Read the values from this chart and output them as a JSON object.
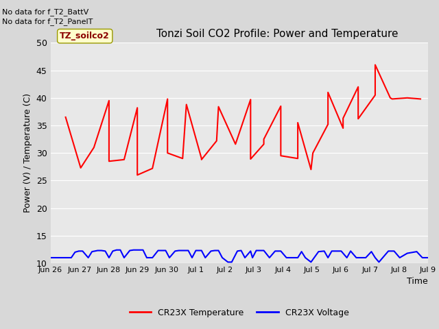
{
  "title": "Tonzi Soil CO2 Profile: Power and Temperature",
  "ylabel": "Power (V) / Temperature (C)",
  "xlabel": "Time",
  "ylim": [
    10,
    50
  ],
  "yticks": [
    10,
    15,
    20,
    25,
    30,
    35,
    40,
    45,
    50
  ],
  "no_data_text_1": "No data for f_T2_BattV",
  "no_data_text_2": "No data for f_T2_PanelT",
  "legend_label_box": "TZ_soilco2",
  "legend_items": [
    "CR23X Temperature",
    "CR23X Voltage"
  ],
  "legend_colors": [
    "#ff0000",
    "#0000ff"
  ],
  "fig_bg_color": "#d8d8d8",
  "plot_bg_color": "#e8e8e8",
  "temp_color": "#ff0000",
  "volt_color": "#0000ff",
  "temp_x": [
    0.04,
    0.08,
    0.115,
    0.155,
    0.155,
    0.195,
    0.23,
    0.23,
    0.27,
    0.31,
    0.31,
    0.35,
    0.36,
    0.4,
    0.4,
    0.44,
    0.445,
    0.49,
    0.53,
    0.53,
    0.565,
    0.565,
    0.61,
    0.61,
    0.655,
    0.655,
    0.69,
    0.695,
    0.735,
    0.735,
    0.775,
    0.775,
    0.815,
    0.815,
    0.86,
    0.86,
    0.9,
    0.905,
    0.945,
    0.98
  ],
  "temp_y": [
    36.5,
    27.3,
    31.0,
    39.5,
    28.5,
    28.8,
    38.2,
    26.0,
    27.2,
    39.8,
    30.0,
    29.0,
    38.8,
    29.0,
    28.8,
    32.2,
    38.4,
    31.6,
    39.7,
    28.9,
    31.6,
    32.5,
    38.5,
    29.5,
    29.0,
    35.5,
    27.0,
    30.0,
    35.2,
    41.0,
    34.5,
    36.3,
    42.0,
    36.2,
    40.5,
    46.0,
    40.0,
    39.8,
    40.0,
    39.8
  ],
  "volt_x": [
    0.0,
    0.055,
    0.065,
    0.075,
    0.085,
    0.1,
    0.11,
    0.125,
    0.135,
    0.145,
    0.155,
    0.165,
    0.175,
    0.185,
    0.195,
    0.21,
    0.22,
    0.235,
    0.245,
    0.255,
    0.27,
    0.285,
    0.295,
    0.305,
    0.315,
    0.33,
    0.34,
    0.355,
    0.365,
    0.375,
    0.385,
    0.4,
    0.41,
    0.425,
    0.435,
    0.445,
    0.455,
    0.47,
    0.48,
    0.495,
    0.505,
    0.515,
    0.53,
    0.535,
    0.545,
    0.565,
    0.58,
    0.595,
    0.61,
    0.625,
    0.655,
    0.665,
    0.675,
    0.69,
    0.71,
    0.725,
    0.735,
    0.745,
    0.77,
    0.785,
    0.795,
    0.81,
    0.835,
    0.85,
    0.86,
    0.87,
    0.895,
    0.91,
    0.925,
    0.945,
    0.97,
    0.985,
    1.0
  ],
  "volt_y": [
    11.0,
    11.0,
    12.0,
    12.2,
    12.2,
    11.0,
    12.1,
    12.3,
    12.3,
    12.2,
    11.0,
    12.2,
    12.4,
    12.4,
    11.0,
    12.3,
    12.4,
    12.4,
    12.4,
    11.0,
    11.0,
    12.3,
    12.3,
    12.3,
    11.0,
    12.2,
    12.3,
    12.3,
    12.3,
    11.0,
    12.3,
    12.3,
    11.0,
    12.2,
    12.3,
    12.3,
    11.0,
    10.2,
    10.2,
    12.2,
    12.3,
    11.0,
    12.2,
    11.0,
    12.3,
    12.3,
    11.0,
    12.2,
    12.2,
    11.0,
    11.0,
    12.1,
    11.0,
    10.2,
    12.1,
    12.2,
    11.0,
    12.2,
    12.2,
    11.0,
    12.2,
    11.0,
    11.0,
    12.1,
    11.0,
    10.2,
    12.2,
    12.2,
    11.0,
    11.8,
    12.1,
    11.0,
    11.0
  ],
  "xtick_positions": [
    0.0,
    0.0769,
    0.1538,
    0.2308,
    0.3077,
    0.3846,
    0.4615,
    0.5385,
    0.6154,
    0.6923,
    0.7692,
    0.8462,
    0.9231,
    1.0
  ],
  "xtick_labels": [
    "Jun 26",
    "Jun 27",
    "Jun 28",
    "Jun 29",
    "Jun 30",
    "Jul 1",
    "Jul 2",
    "Jul 3",
    "Jul 4",
    "Jul 5",
    "Jul 6",
    "Jul 7",
    "Jul 8",
    "Jul 9"
  ]
}
